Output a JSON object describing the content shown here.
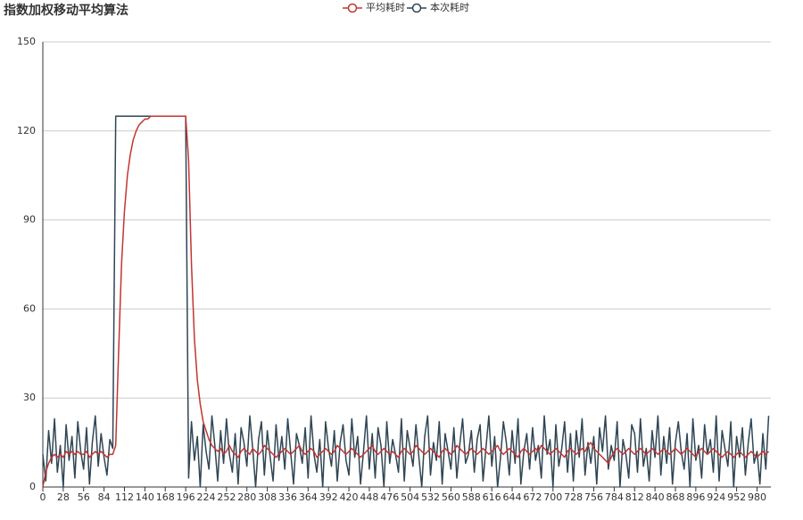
{
  "chart_data": {
    "type": "line",
    "title": "指数加权移动平均算法",
    "x": [
      0,
      4,
      8,
      12,
      16,
      20,
      24,
      28,
      32,
      36,
      40,
      44,
      48,
      52,
      56,
      60,
      64,
      68,
      72,
      76,
      80,
      84,
      88,
      92,
      96,
      100,
      104,
      108,
      112,
      116,
      120,
      124,
      128,
      132,
      136,
      140,
      144,
      148,
      152,
      156,
      160,
      164,
      168,
      172,
      176,
      180,
      184,
      188,
      192,
      196,
      200,
      204,
      208,
      212,
      216,
      220,
      224,
      228,
      232,
      236,
      240,
      244,
      248,
      252,
      256,
      260,
      264,
      268,
      272,
      276,
      280,
      284,
      288,
      292,
      296,
      300,
      304,
      308,
      312,
      316,
      320,
      324,
      328,
      332,
      336,
      340,
      344,
      348,
      352,
      356,
      360,
      364,
      368,
      372,
      376,
      380,
      384,
      388,
      392,
      396,
      400,
      404,
      408,
      412,
      416,
      420,
      424,
      428,
      432,
      436,
      440,
      444,
      448,
      452,
      456,
      460,
      464,
      468,
      472,
      476,
      480,
      484,
      488,
      492,
      496,
      500,
      504,
      508,
      512,
      516,
      520,
      524,
      528,
      532,
      536,
      540,
      544,
      548,
      552,
      556,
      560,
      564,
      568,
      572,
      576,
      580,
      584,
      588,
      592,
      596,
      600,
      604,
      608,
      612,
      616,
      620,
      624,
      628,
      632,
      636,
      640,
      644,
      648,
      652,
      656,
      660,
      664,
      668,
      672,
      676,
      680,
      684,
      688,
      692,
      696,
      700,
      704,
      708,
      712,
      716,
      720,
      724,
      728,
      732,
      736,
      740,
      744,
      748,
      752,
      756,
      760,
      764,
      768,
      772,
      776,
      780,
      784,
      788,
      792,
      796,
      800,
      804,
      808,
      812,
      816,
      820,
      824,
      828,
      832,
      836,
      840,
      844,
      848,
      852,
      856,
      860,
      864,
      868,
      872,
      876,
      880,
      884,
      888,
      892,
      896,
      900,
      904,
      908,
      912,
      916,
      920,
      924,
      928,
      932,
      936,
      940,
      944,
      948,
      952,
      956,
      960,
      964,
      968,
      972,
      976,
      980,
      984,
      988,
      992,
      996
    ],
    "series": [
      {
        "name": "平均耗时",
        "color": "#c23531",
        "values": [
          0,
          5,
          8,
          10,
          11,
          10,
          11,
          10,
          12,
          11,
          12,
          11,
          12,
          11,
          11,
          12,
          10,
          11,
          12,
          11,
          12,
          11,
          10,
          11,
          11,
          14,
          45,
          75,
          93,
          105,
          112,
          117,
          120,
          122,
          123,
          124,
          124,
          125,
          125,
          125,
          125,
          125,
          125,
          125,
          125,
          125,
          125,
          125,
          125,
          125,
          110,
          75,
          50,
          36,
          28,
          22,
          19,
          16,
          14,
          13,
          12,
          13,
          11,
          12,
          14,
          12,
          11,
          10,
          12,
          13,
          12,
          11,
          13,
          12,
          11,
          12,
          14,
          13,
          12,
          11,
          10,
          11,
          12,
          13,
          12,
          11,
          12,
          13,
          14,
          12,
          11,
          12,
          13,
          12,
          10,
          11,
          12,
          13,
          12,
          11,
          12,
          14,
          13,
          12,
          11,
          12,
          13,
          12,
          11,
          10,
          11,
          12,
          13,
          14,
          12,
          11,
          12,
          13,
          12,
          11,
          12,
          11,
          10,
          12,
          13,
          12,
          11,
          12,
          14,
          13,
          12,
          11,
          12,
          13,
          12,
          11,
          10,
          12,
          13,
          12,
          11,
          12,
          14,
          13,
          12,
          11,
          12,
          13,
          12,
          11,
          12,
          13,
          12,
          11,
          12,
          13,
          14,
          12,
          11,
          12,
          13,
          12,
          11,
          10,
          12,
          13,
          12,
          11,
          12,
          13,
          12,
          14,
          13,
          12,
          11,
          12,
          13,
          12,
          11,
          10,
          12,
          13,
          12,
          11,
          12,
          13,
          12,
          14,
          15,
          13,
          12,
          11,
          10,
          9,
          8,
          10,
          12,
          13,
          12,
          11,
          12,
          13,
          12,
          11,
          12,
          13,
          12,
          11,
          12,
          13,
          12,
          11,
          12,
          13,
          12,
          11,
          12,
          13,
          12,
          11,
          12,
          13,
          12,
          11,
          10,
          12,
          13,
          12,
          11,
          12,
          13,
          12,
          11,
          10,
          11,
          12,
          11,
          10,
          11,
          12,
          11,
          10,
          11,
          12,
          11,
          10,
          11,
          12,
          11,
          12
        ]
      },
      {
        "name": "本次耗时",
        "color": "#2f4554",
        "values": [
          11,
          2,
          19,
          8,
          23,
          5,
          14,
          0,
          21,
          9,
          17,
          3,
          22,
          12,
          6,
          20,
          1,
          15,
          24,
          7,
          18,
          10,
          4,
          16,
          13,
          125,
          125,
          125,
          125,
          125,
          125,
          125,
          125,
          125,
          125,
          125,
          125,
          125,
          125,
          125,
          125,
          125,
          125,
          125,
          125,
          125,
          125,
          125,
          125,
          125,
          3,
          22,
          9,
          17,
          0,
          21,
          12,
          6,
          24,
          14,
          2,
          19,
          8,
          23,
          11,
          5,
          18,
          1,
          20,
          15,
          7,
          24,
          13,
          0,
          16,
          22,
          4,
          19,
          10,
          2,
          21,
          9,
          17,
          6,
          23,
          12,
          1,
          18,
          14,
          8,
          20,
          3,
          24,
          11,
          5,
          16,
          0,
          22,
          13,
          7,
          19,
          2,
          15,
          21,
          9,
          4,
          23,
          10,
          17,
          1,
          12,
          24,
          6,
          18,
          3,
          20,
          14,
          0,
          22,
          8,
          16,
          11,
          5,
          23,
          2,
          19,
          13,
          7,
          21,
          10,
          0,
          17,
          24,
          4,
          15,
          9,
          22,
          1,
          18,
          12,
          6,
          20,
          3,
          14,
          23,
          8,
          11,
          19,
          5,
          16,
          21,
          2,
          13,
          24,
          7,
          17,
          0,
          10,
          22,
          15,
          4,
          19,
          8,
          23,
          1,
          12,
          18,
          6,
          20,
          9,
          14,
          3,
          24,
          11,
          16,
          0,
          21,
          7,
          13,
          22,
          5,
          18,
          2,
          19,
          10,
          23,
          4,
          15,
          8,
          17,
          1,
          20,
          12,
          24,
          6,
          14,
          9,
          22,
          0,
          16,
          11,
          3,
          21,
          18,
          5,
          23,
          7,
          13,
          2,
          19,
          10,
          24,
          4,
          17,
          8,
          20,
          1,
          15,
          22,
          12,
          6,
          18,
          0,
          23,
          9,
          14,
          3,
          21,
          11,
          16,
          5,
          24,
          2,
          19,
          13,
          7,
          22,
          0,
          17,
          10,
          20,
          4,
          15,
          23,
          8,
          12,
          1,
          18,
          6,
          24
        ]
      }
    ],
    "xlim": [
      0,
      999
    ],
    "xticks": [
      0,
      28,
      56,
      84,
      112,
      140,
      168,
      196,
      224,
      252,
      280,
      308,
      336,
      364,
      392,
      420,
      448,
      476,
      504,
      532,
      560,
      588,
      616,
      644,
      672,
      700,
      728,
      756,
      784,
      812,
      840,
      868,
      896,
      924,
      952,
      980
    ],
    "ylim": [
      0,
      150
    ],
    "yticks": [
      0,
      30,
      60,
      90,
      120,
      150
    ],
    "grid": true,
    "legend": "top"
  }
}
